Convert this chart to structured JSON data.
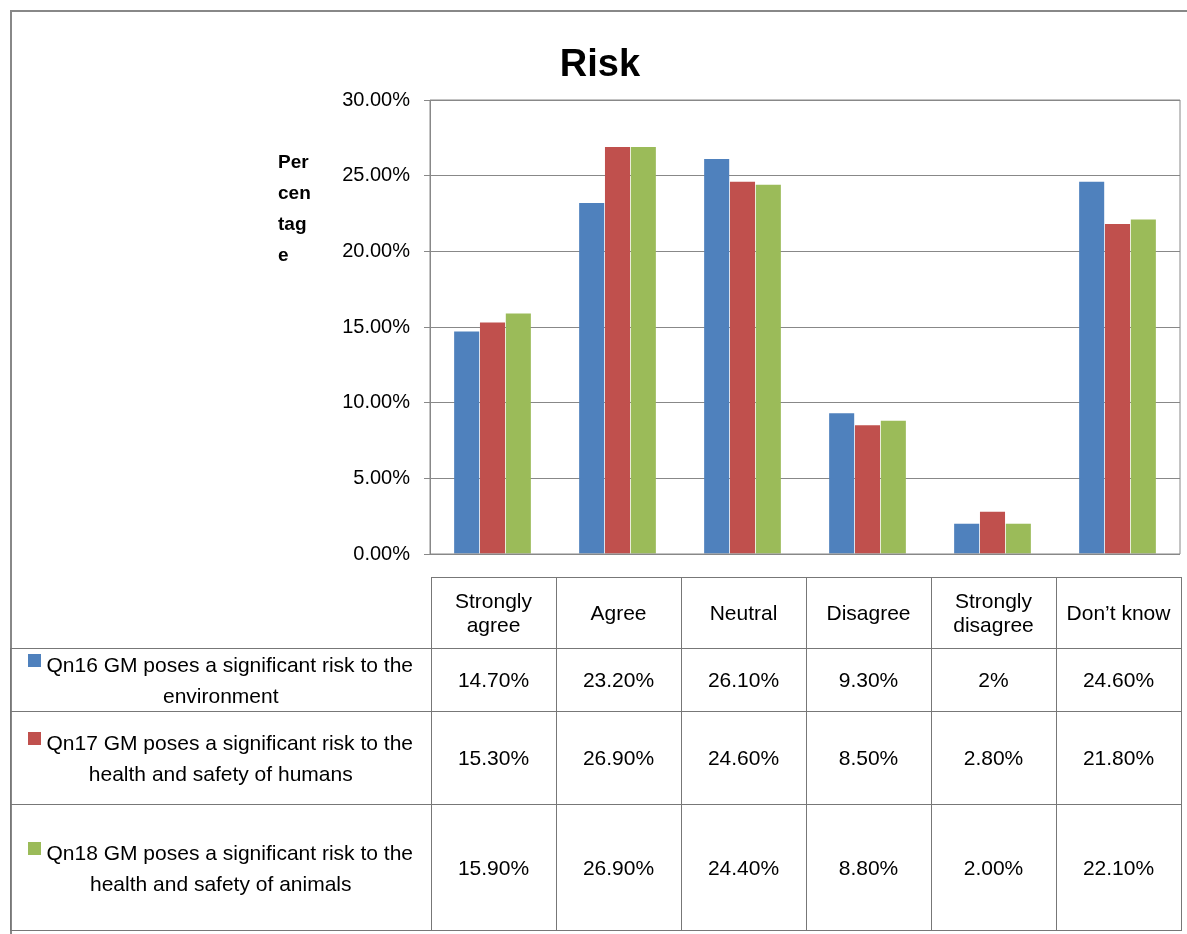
{
  "chart_data": {
    "type": "bar",
    "title": "Risk",
    "ylabel": "Percentage",
    "categories": [
      "Strongly agree",
      "Agree",
      "Neutral",
      "Disagree",
      "Strongly disagree",
      "Don’t know"
    ],
    "series": [
      {
        "name": "Qn16 GM poses a significant risk to the environment",
        "color": "#4f81bd",
        "values": [
          14.7,
          23.2,
          26.1,
          9.3,
          2,
          24.6
        ],
        "value_labels": [
          "14.70%",
          "23.20%",
          "26.10%",
          "9.30%",
          "2%",
          "24.60%"
        ]
      },
      {
        "name": "Qn17 GM poses a significant risk to the health and safety of humans",
        "color": "#c0504d",
        "values": [
          15.3,
          26.9,
          24.6,
          8.5,
          2.8,
          21.8
        ],
        "value_labels": [
          "15.30%",
          "26.90%",
          "24.60%",
          "8.50%",
          "2.80%",
          "21.80%"
        ]
      },
      {
        "name": "Qn18 GM poses a significant risk to the health and safety of animals",
        "color": "#9bbb59",
        "values": [
          15.9,
          26.9,
          24.4,
          8.8,
          2.0,
          22.1
        ],
        "value_labels": [
          "15.90%",
          "26.90%",
          "24.40%",
          "8.80%",
          "2.00%",
          "22.10%"
        ]
      }
    ],
    "ylim": [
      0,
      30
    ],
    "yticks": [
      {
        "value": 0,
        "label": "0.00%"
      },
      {
        "value": 5,
        "label": "5.00%"
      },
      {
        "value": 10,
        "label": "10.00%"
      },
      {
        "value": 15,
        "label": "15.00%"
      },
      {
        "value": 20,
        "label": "20.00%"
      },
      {
        "value": 25,
        "label": "25.00%"
      },
      {
        "value": 30,
        "label": "30.00%"
      }
    ],
    "grid": "y",
    "legend": "bottom"
  }
}
